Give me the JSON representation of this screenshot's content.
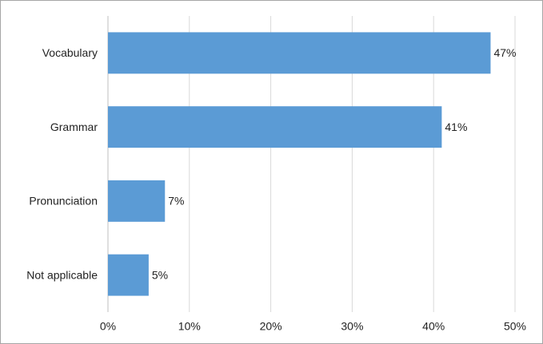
{
  "chart_data": {
    "type": "bar",
    "orientation": "horizontal",
    "categories": [
      "Vocabulary",
      "Grammar",
      "Pronunciation",
      "Not applicable"
    ],
    "values": [
      47,
      41,
      7,
      5
    ],
    "value_labels": [
      "47%",
      "41%",
      "7%",
      "5%"
    ],
    "color": "#5b9bd5",
    "xlim": [
      0,
      50
    ],
    "xticks": [
      {
        "value": 0,
        "label": "0%"
      },
      {
        "value": 10,
        "label": "10%"
      },
      {
        "value": 20,
        "label": "20%"
      },
      {
        "value": 30,
        "label": "30%"
      },
      {
        "value": 40,
        "label": "40%"
      },
      {
        "value": 50,
        "label": "50%"
      }
    ],
    "grid": true
  }
}
